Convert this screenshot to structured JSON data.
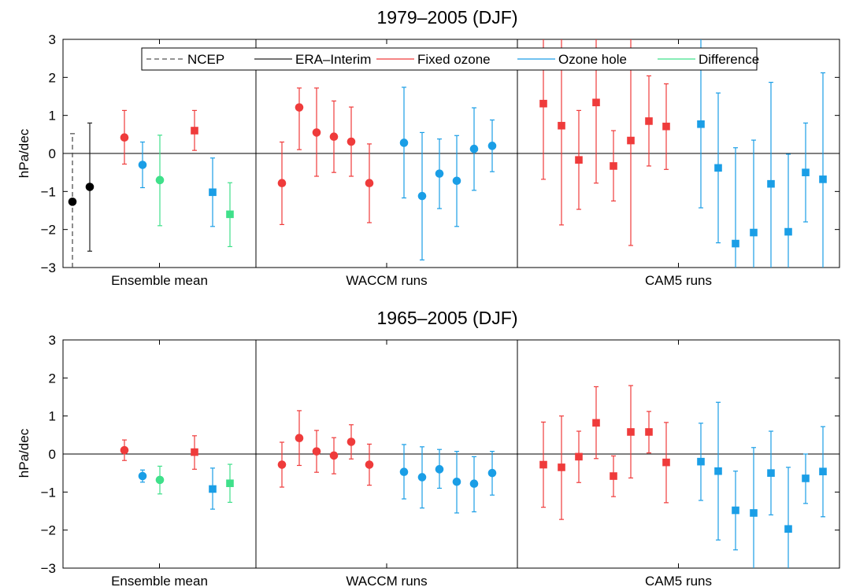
{
  "figure": {
    "groups": [
      "Ensemble mean",
      "WACCM runs",
      "CAM5 runs"
    ],
    "legend": [
      {
        "label": "NCEP",
        "color": "#555555",
        "dash": true
      },
      {
        "label": "ERA–Interim",
        "color": "#222222",
        "dash": false
      },
      {
        "label": "Fixed ozone",
        "color": "#ef3b3b",
        "dash": false
      },
      {
        "label": "Ozone hole",
        "color": "#1a9ee6",
        "dash": false
      },
      {
        "label": "Difference",
        "color": "#3fe08a",
        "dash": false
      }
    ]
  },
  "chart_data": [
    {
      "type": "scatter",
      "title": "1979–2005 (DJF)",
      "ylabel": "hPa/dec",
      "ylim": [
        -3,
        3
      ],
      "yticks": [
        -3,
        -2,
        -1,
        0,
        1,
        2,
        3
      ],
      "xticklabels": [
        "Ensemble mean",
        "WACCM runs",
        "CAM5 runs"
      ],
      "points": [
        {
          "group": "Ensemble mean",
          "series": "NCEP",
          "marker": "circle",
          "value": -1.27,
          "low": -3.0,
          "high": 0.52
        },
        {
          "group": "Ensemble mean",
          "series": "ERA–Interim",
          "marker": "circle",
          "value": -0.88,
          "low": -2.57,
          "high": 0.8
        },
        {
          "group": "Ensemble mean",
          "series": "Fixed ozone",
          "marker": "circle",
          "value": 0.42,
          "low": -0.28,
          "high": 1.13
        },
        {
          "group": "Ensemble mean",
          "series": "Ozone hole",
          "marker": "circle",
          "value": -0.3,
          "low": -0.9,
          "high": 0.3
        },
        {
          "group": "Ensemble mean",
          "series": "Difference",
          "marker": "circle",
          "value": -0.7,
          "low": -1.9,
          "high": 0.48
        },
        {
          "group": "Ensemble mean",
          "series": "Fixed ozone",
          "marker": "square",
          "value": 0.6,
          "low": 0.08,
          "high": 1.13
        },
        {
          "group": "Ensemble mean",
          "series": "Ozone hole",
          "marker": "square",
          "value": -1.02,
          "low": -1.92,
          "high": -0.12
        },
        {
          "group": "Ensemble mean",
          "series": "Difference",
          "marker": "square",
          "value": -1.6,
          "low": -2.45,
          "high": -0.77
        },
        {
          "group": "WACCM runs",
          "series": "Fixed ozone",
          "marker": "circle",
          "value": -0.78,
          "low": -1.87,
          "high": 0.3
        },
        {
          "group": "WACCM runs",
          "series": "Fixed ozone",
          "marker": "circle",
          "value": 1.21,
          "low": 0.1,
          "high": 1.72
        },
        {
          "group": "WACCM runs",
          "series": "Fixed ozone",
          "marker": "circle",
          "value": 0.55,
          "low": -0.6,
          "high": 1.72
        },
        {
          "group": "WACCM runs",
          "series": "Fixed ozone",
          "marker": "circle",
          "value": 0.44,
          "low": -0.5,
          "high": 1.38
        },
        {
          "group": "WACCM runs",
          "series": "Fixed ozone",
          "marker": "circle",
          "value": 0.31,
          "low": -0.6,
          "high": 1.22
        },
        {
          "group": "WACCM runs",
          "series": "Fixed ozone",
          "marker": "circle",
          "value": -0.78,
          "low": -1.82,
          "high": 0.25
        },
        {
          "group": "WACCM runs",
          "series": "Ozone hole",
          "marker": "circle",
          "value": 0.28,
          "low": -1.17,
          "high": 1.74
        },
        {
          "group": "WACCM runs",
          "series": "Ozone hole",
          "marker": "circle",
          "value": -1.12,
          "low": -2.8,
          "high": 0.55
        },
        {
          "group": "WACCM runs",
          "series": "Ozone hole",
          "marker": "circle",
          "value": -0.53,
          "low": -1.45,
          "high": 0.38
        },
        {
          "group": "WACCM runs",
          "series": "Ozone hole",
          "marker": "circle",
          "value": -0.72,
          "low": -1.92,
          "high": 0.47
        },
        {
          "group": "WACCM runs",
          "series": "Ozone hole",
          "marker": "circle",
          "value": 0.12,
          "low": -0.97,
          "high": 1.2
        },
        {
          "group": "WACCM runs",
          "series": "Ozone hole",
          "marker": "circle",
          "value": 0.2,
          "low": -0.48,
          "high": 0.88
        },
        {
          "group": "CAM5 runs",
          "series": "Fixed ozone",
          "marker": "square",
          "value": 1.31,
          "low": -0.68,
          "high": 3.0
        },
        {
          "group": "CAM5 runs",
          "series": "Fixed ozone",
          "marker": "square",
          "value": 0.73,
          "low": -1.88,
          "high": 3.0
        },
        {
          "group": "CAM5 runs",
          "series": "Fixed ozone",
          "marker": "square",
          "value": -0.17,
          "low": -1.47,
          "high": 1.13
        },
        {
          "group": "CAM5 runs",
          "series": "Fixed ozone",
          "marker": "square",
          "value": 1.34,
          "low": -0.78,
          "high": 3.0
        },
        {
          "group": "CAM5 runs",
          "series": "Fixed ozone",
          "marker": "square",
          "value": -0.33,
          "low": -1.25,
          "high": 0.6
        },
        {
          "group": "CAM5 runs",
          "series": "Fixed ozone",
          "marker": "square",
          "value": 0.34,
          "low": -2.42,
          "high": 3.0
        },
        {
          "group": "CAM5 runs",
          "series": "Fixed ozone",
          "marker": "square",
          "value": 0.85,
          "low": -0.33,
          "high": 2.04
        },
        {
          "group": "CAM5 runs",
          "series": "Fixed ozone",
          "marker": "square",
          "value": 0.71,
          "low": -0.42,
          "high": 1.83
        },
        {
          "group": "CAM5 runs",
          "series": "Ozone hole",
          "marker": "square",
          "value": 0.77,
          "low": -1.43,
          "high": 3.0
        },
        {
          "group": "CAM5 runs",
          "series": "Ozone hole",
          "marker": "square",
          "value": -0.38,
          "low": -2.35,
          "high": 1.59
        },
        {
          "group": "CAM5 runs",
          "series": "Ozone hole",
          "marker": "square",
          "value": -2.37,
          "low": -3.0,
          "high": 0.15
        },
        {
          "group": "CAM5 runs",
          "series": "Ozone hole",
          "marker": "square",
          "value": -2.08,
          "low": -3.0,
          "high": 0.35
        },
        {
          "group": "CAM5 runs",
          "series": "Ozone hole",
          "marker": "square",
          "value": -0.8,
          "low": -3.0,
          "high": 1.87
        },
        {
          "group": "CAM5 runs",
          "series": "Ozone hole",
          "marker": "square",
          "value": -2.06,
          "low": -3.0,
          "high": -0.02
        },
        {
          "group": "CAM5 runs",
          "series": "Ozone hole",
          "marker": "square",
          "value": -0.5,
          "low": -1.8,
          "high": 0.8
        },
        {
          "group": "CAM5 runs",
          "series": "Ozone hole",
          "marker": "square",
          "value": -0.68,
          "low": -3.0,
          "high": 2.12
        }
      ]
    },
    {
      "type": "scatter",
      "title": "1965–2005 (DJF)",
      "ylabel": "hPa/dec",
      "ylim": [
        -3,
        3
      ],
      "yticks": [
        -3,
        -2,
        -1,
        0,
        1,
        2,
        3
      ],
      "xticklabels": [
        "Ensemble mean",
        "WACCM runs",
        "CAM5 runs"
      ],
      "points": [
        {
          "group": "Ensemble mean",
          "series": "Fixed ozone",
          "marker": "circle",
          "value": 0.1,
          "low": -0.17,
          "high": 0.37
        },
        {
          "group": "Ensemble mean",
          "series": "Ozone hole",
          "marker": "circle",
          "value": -0.58,
          "low": -0.74,
          "high": -0.42
        },
        {
          "group": "Ensemble mean",
          "series": "Difference",
          "marker": "circle",
          "value": -0.68,
          "low": -1.05,
          "high": -0.32
        },
        {
          "group": "Ensemble mean",
          "series": "Fixed ozone",
          "marker": "square",
          "value": 0.05,
          "low": -0.4,
          "high": 0.48
        },
        {
          "group": "Ensemble mean",
          "series": "Ozone hole",
          "marker": "square",
          "value": -0.92,
          "low": -1.45,
          "high": -0.37
        },
        {
          "group": "Ensemble mean",
          "series": "Difference",
          "marker": "square",
          "value": -0.77,
          "low": -1.27,
          "high": -0.27
        },
        {
          "group": "WACCM runs",
          "series": "Fixed ozone",
          "marker": "circle",
          "value": -0.28,
          "low": -0.87,
          "high": 0.31
        },
        {
          "group": "WACCM runs",
          "series": "Fixed ozone",
          "marker": "circle",
          "value": 0.42,
          "low": -0.3,
          "high": 1.14
        },
        {
          "group": "WACCM runs",
          "series": "Fixed ozone",
          "marker": "circle",
          "value": 0.07,
          "low": -0.48,
          "high": 0.62
        },
        {
          "group": "WACCM runs",
          "series": "Fixed ozone",
          "marker": "circle",
          "value": -0.04,
          "low": -0.52,
          "high": 0.43
        },
        {
          "group": "WACCM runs",
          "series": "Fixed ozone",
          "marker": "circle",
          "value": 0.32,
          "low": -0.13,
          "high": 0.77
        },
        {
          "group": "WACCM runs",
          "series": "Fixed ozone",
          "marker": "circle",
          "value": -0.28,
          "low": -0.82,
          "high": 0.26
        },
        {
          "group": "WACCM runs",
          "series": "Ozone hole",
          "marker": "circle",
          "value": -0.47,
          "low": -1.18,
          "high": 0.25
        },
        {
          "group": "WACCM runs",
          "series": "Ozone hole",
          "marker": "circle",
          "value": -0.61,
          "low": -1.42,
          "high": 0.19
        },
        {
          "group": "WACCM runs",
          "series": "Ozone hole",
          "marker": "circle",
          "value": -0.4,
          "low": -0.9,
          "high": 0.12
        },
        {
          "group": "WACCM runs",
          "series": "Ozone hole",
          "marker": "circle",
          "value": -0.73,
          "low": -1.55,
          "high": 0.07
        },
        {
          "group": "WACCM runs",
          "series": "Ozone hole",
          "marker": "circle",
          "value": -0.78,
          "low": -1.52,
          "high": -0.07
        },
        {
          "group": "WACCM runs",
          "series": "Ozone hole",
          "marker": "circle",
          "value": -0.5,
          "low": -1.08,
          "high": 0.07
        },
        {
          "group": "CAM5 runs",
          "series": "Fixed ozone",
          "marker": "square",
          "value": -0.28,
          "low": -1.4,
          "high": 0.84
        },
        {
          "group": "CAM5 runs",
          "series": "Fixed ozone",
          "marker": "square",
          "value": -0.35,
          "low": -1.72,
          "high": 1.0
        },
        {
          "group": "CAM5 runs",
          "series": "Fixed ozone",
          "marker": "square",
          "value": -0.07,
          "low": -0.75,
          "high": 0.6
        },
        {
          "group": "CAM5 runs",
          "series": "Fixed ozone",
          "marker": "square",
          "value": 0.82,
          "low": -0.12,
          "high": 1.77
        },
        {
          "group": "CAM5 runs",
          "series": "Fixed ozone",
          "marker": "square",
          "value": -0.58,
          "low": -1.12,
          "high": -0.05
        },
        {
          "group": "CAM5 runs",
          "series": "Fixed ozone",
          "marker": "square",
          "value": 0.58,
          "low": -0.63,
          "high": 1.8
        },
        {
          "group": "CAM5 runs",
          "series": "Fixed ozone",
          "marker": "square",
          "value": 0.58,
          "low": 0.03,
          "high": 1.12
        },
        {
          "group": "CAM5 runs",
          "series": "Fixed ozone",
          "marker": "square",
          "value": -0.22,
          "low": -1.28,
          "high": 0.83
        },
        {
          "group": "CAM5 runs",
          "series": "Ozone hole",
          "marker": "square",
          "value": -0.2,
          "low": -1.22,
          "high": 0.81
        },
        {
          "group": "CAM5 runs",
          "series": "Ozone hole",
          "marker": "square",
          "value": -0.45,
          "low": -2.26,
          "high": 1.36
        },
        {
          "group": "CAM5 runs",
          "series": "Ozone hole",
          "marker": "square",
          "value": -1.48,
          "low": -2.52,
          "high": -0.45
        },
        {
          "group": "CAM5 runs",
          "series": "Ozone hole",
          "marker": "square",
          "value": -1.55,
          "low": -3.0,
          "high": 0.17
        },
        {
          "group": "CAM5 runs",
          "series": "Ozone hole",
          "marker": "square",
          "value": -0.5,
          "low": -1.6,
          "high": 0.6
        },
        {
          "group": "CAM5 runs",
          "series": "Ozone hole",
          "marker": "square",
          "value": -1.97,
          "low": -3.0,
          "high": -0.35
        },
        {
          "group": "CAM5 runs",
          "series": "Ozone hole",
          "marker": "square",
          "value": -0.64,
          "low": -1.3,
          "high": 0.0
        },
        {
          "group": "CAM5 runs",
          "series": "Ozone hole",
          "marker": "square",
          "value": -0.46,
          "low": -1.65,
          "high": 0.72
        }
      ]
    }
  ]
}
